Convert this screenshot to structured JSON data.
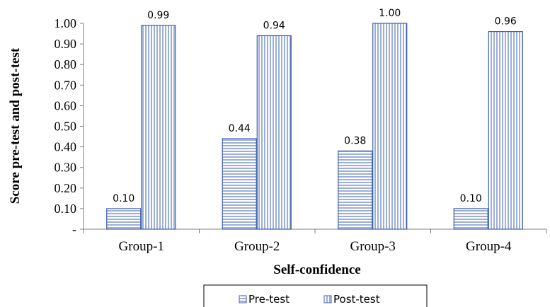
{
  "chart_data": {
    "type": "bar",
    "categories": [
      "Group-1",
      "Group-2",
      "Group-3",
      "Group-4"
    ],
    "series": [
      {
        "name": "Pre-test",
        "values": [
          0.1,
          0.44,
          0.38,
          0.1
        ],
        "labels": [
          "0.10",
          "0.44",
          "0.38",
          "0.10"
        ],
        "pattern": "horizontal-lines"
      },
      {
        "name": "Post-test",
        "values": [
          0.99,
          0.94,
          1.0,
          0.96
        ],
        "labels": [
          "0.99",
          "0.94",
          "1.00",
          "0.96"
        ],
        "pattern": "vertical-lines"
      }
    ],
    "xlabel": "Self-confidence",
    "ylabel": "Score pre-test and post-test",
    "ylim": [
      0,
      1.0
    ],
    "yticks": [
      {
        "value": 0,
        "label": "-"
      },
      {
        "value": 0.1,
        "label": "0.10"
      },
      {
        "value": 0.2,
        "label": "0.20"
      },
      {
        "value": 0.3,
        "label": "0.30"
      },
      {
        "value": 0.4,
        "label": "0.40"
      },
      {
        "value": 0.5,
        "label": "0.50"
      },
      {
        "value": 0.6,
        "label": "0.60"
      },
      {
        "value": 0.7,
        "label": "0.70"
      },
      {
        "value": 0.8,
        "label": "0.80"
      },
      {
        "value": 0.9,
        "label": "0.90"
      },
      {
        "value": 1.0,
        "label": "1.00"
      }
    ],
    "grid": false,
    "legend": "bottom",
    "bar_color": "#3a5fad"
  }
}
